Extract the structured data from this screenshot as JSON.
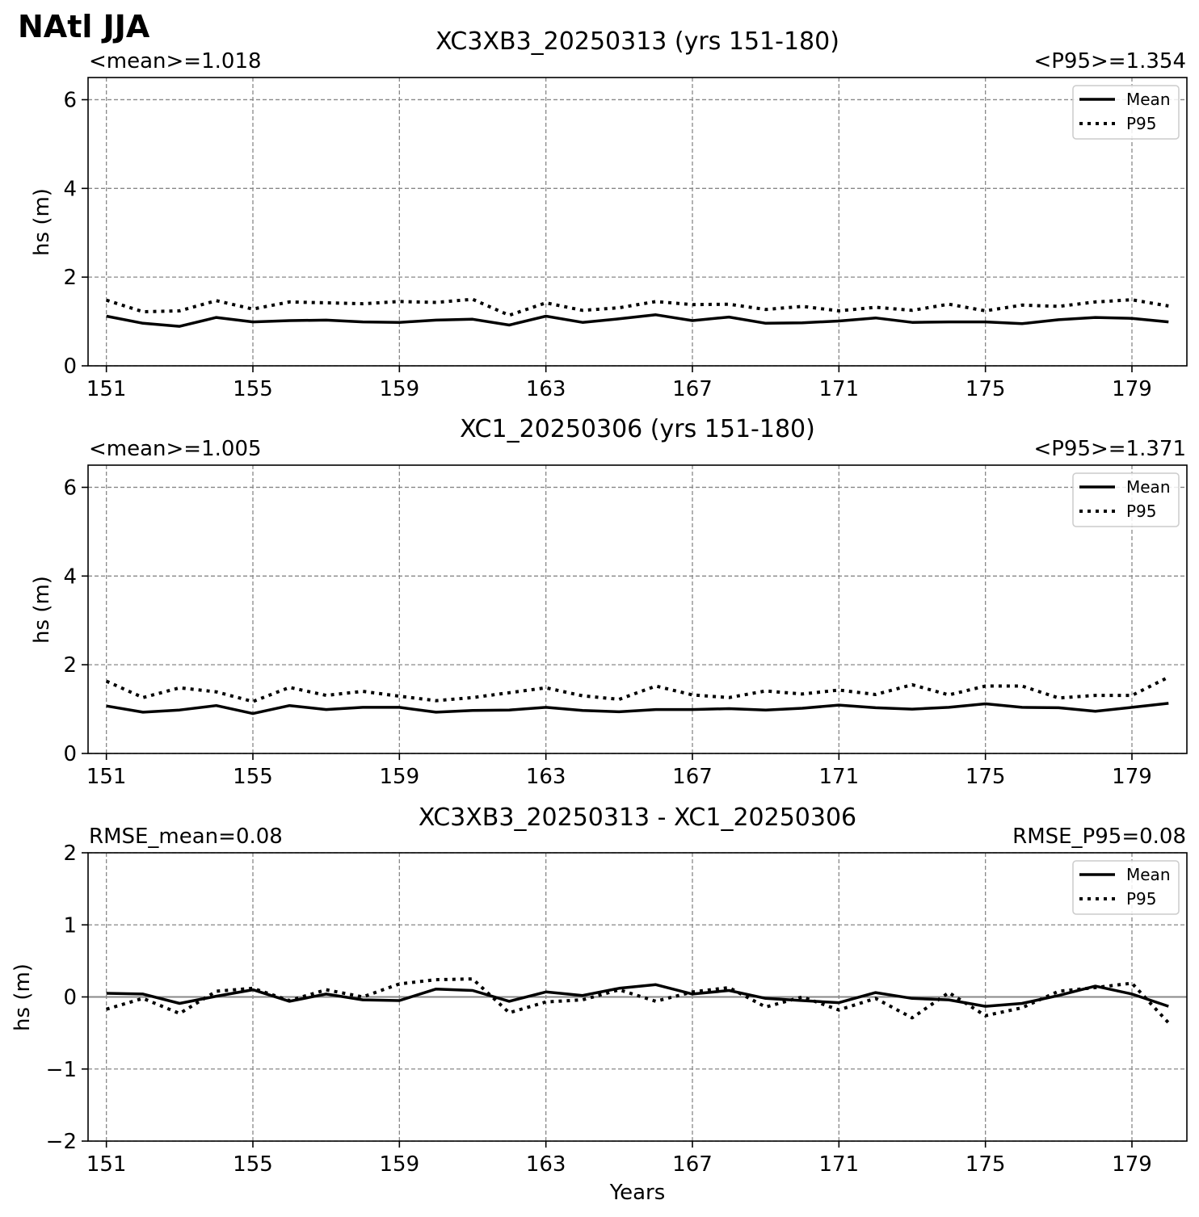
{
  "figure_title": "NAtl JJA",
  "legend": {
    "mean_label": "Mean",
    "p95_label": "P95"
  },
  "chart_data": [
    {
      "type": "line",
      "title": "XC3XB3_20250313 (yrs 151-180)",
      "left_annotation": "<mean>=1.018",
      "right_annotation": "<P95>=1.354",
      "xlabel": "",
      "ylabel": "hs (m)",
      "xlim": [
        150.5,
        180.5
      ],
      "ylim": [
        0,
        6.5
      ],
      "xticks": [
        "151",
        "155",
        "159",
        "163",
        "167",
        "171",
        "175",
        "179"
      ],
      "yticks": [
        "0",
        "2",
        "4",
        "6"
      ],
      "grid": true,
      "legend_position": "top-right",
      "zero_line": false,
      "x": [
        151,
        152,
        153,
        154,
        155,
        156,
        157,
        158,
        159,
        160,
        161,
        162,
        163,
        164,
        165,
        166,
        167,
        168,
        169,
        170,
        171,
        172,
        173,
        174,
        175,
        176,
        177,
        178,
        179,
        180
      ],
      "series": [
        {
          "name": "Mean",
          "style": "solid",
          "values": [
            1.12,
            0.96,
            0.89,
            1.09,
            0.99,
            1.02,
            1.03,
            0.99,
            0.98,
            1.03,
            1.05,
            0.92,
            1.12,
            0.98,
            1.06,
            1.15,
            1.02,
            1.1,
            0.96,
            0.97,
            1.01,
            1.08,
            0.98,
            0.99,
            0.99,
            0.95,
            1.04,
            1.09,
            1.07,
            0.99
          ]
        },
        {
          "name": "P95",
          "style": "dotted",
          "values": [
            1.48,
            1.22,
            1.24,
            1.47,
            1.28,
            1.44,
            1.42,
            1.4,
            1.45,
            1.43,
            1.5,
            1.14,
            1.42,
            1.25,
            1.31,
            1.45,
            1.38,
            1.39,
            1.27,
            1.34,
            1.24,
            1.32,
            1.25,
            1.39,
            1.24,
            1.37,
            1.34,
            1.44,
            1.49,
            1.35
          ]
        }
      ]
    },
    {
      "type": "line",
      "title": "XC1_20250306 (yrs 151-180)",
      "left_annotation": "<mean>=1.005",
      "right_annotation": "<P95>=1.371",
      "xlabel": "",
      "ylabel": "hs (m)",
      "xlim": [
        150.5,
        180.5
      ],
      "ylim": [
        0,
        6.5
      ],
      "xticks": [
        "151",
        "155",
        "159",
        "163",
        "167",
        "171",
        "175",
        "179"
      ],
      "yticks": [
        "0",
        "2",
        "4",
        "6"
      ],
      "grid": true,
      "legend_position": "top-right",
      "zero_line": false,
      "x": [
        151,
        152,
        153,
        154,
        155,
        156,
        157,
        158,
        159,
        160,
        161,
        162,
        163,
        164,
        165,
        166,
        167,
        168,
        169,
        170,
        171,
        172,
        173,
        174,
        175,
        176,
        177,
        178,
        179,
        180
      ],
      "series": [
        {
          "name": "Mean",
          "style": "solid",
          "values": [
            1.07,
            0.93,
            0.98,
            1.08,
            0.9,
            1.08,
            0.99,
            1.04,
            1.04,
            0.93,
            0.97,
            0.98,
            1.04,
            0.97,
            0.94,
            0.99,
            0.99,
            1.01,
            0.98,
            1.02,
            1.09,
            1.03,
            1.0,
            1.04,
            1.12,
            1.04,
            1.03,
            0.95,
            1.04,
            1.13
          ]
        },
        {
          "name": "P95",
          "style": "dotted",
          "values": [
            1.63,
            1.26,
            1.48,
            1.39,
            1.17,
            1.49,
            1.31,
            1.4,
            1.29,
            1.19,
            1.26,
            1.37,
            1.48,
            1.3,
            1.22,
            1.52,
            1.32,
            1.26,
            1.41,
            1.34,
            1.43,
            1.33,
            1.55,
            1.32,
            1.52,
            1.52,
            1.25,
            1.31,
            1.31,
            1.72
          ]
        }
      ]
    },
    {
      "type": "line",
      "title": "XC3XB3_20250313 - XC1_20250306",
      "left_annotation": "RMSE_mean=0.08",
      "right_annotation": "RMSE_P95=0.08",
      "xlabel": "Years",
      "ylabel": "hs (m)",
      "xlim": [
        150.5,
        180.5
      ],
      "ylim": [
        -2,
        2
      ],
      "xticks": [
        "151",
        "155",
        "159",
        "163",
        "167",
        "171",
        "175",
        "179"
      ],
      "yticks": [
        "−2",
        "−1",
        "0",
        "1",
        "2"
      ],
      "grid": true,
      "legend_position": "top-right",
      "zero_line": true,
      "x": [
        151,
        152,
        153,
        154,
        155,
        156,
        157,
        158,
        159,
        160,
        161,
        162,
        163,
        164,
        165,
        166,
        167,
        168,
        169,
        170,
        171,
        172,
        173,
        174,
        175,
        176,
        177,
        178,
        179,
        180
      ],
      "series": [
        {
          "name": "Mean",
          "style": "solid",
          "values": [
            0.05,
            0.04,
            -0.09,
            0.01,
            0.1,
            -0.06,
            0.04,
            -0.04,
            -0.05,
            0.11,
            0.09,
            -0.06,
            0.07,
            0.02,
            0.12,
            0.17,
            0.04,
            0.09,
            -0.02,
            -0.05,
            -0.08,
            0.06,
            -0.02,
            -0.04,
            -0.13,
            -0.09,
            0.02,
            0.15,
            0.04,
            -0.13
          ]
        },
        {
          "name": "P95",
          "style": "dotted",
          "values": [
            -0.17,
            -0.02,
            -0.23,
            0.08,
            0.12,
            -0.05,
            0.1,
            0.0,
            0.18,
            0.24,
            0.25,
            -0.22,
            -0.07,
            -0.04,
            0.1,
            -0.06,
            0.07,
            0.13,
            -0.14,
            0.0,
            -0.18,
            -0.02,
            -0.29,
            0.06,
            -0.26,
            -0.15,
            0.08,
            0.13,
            0.19,
            -0.36
          ]
        }
      ]
    }
  ]
}
